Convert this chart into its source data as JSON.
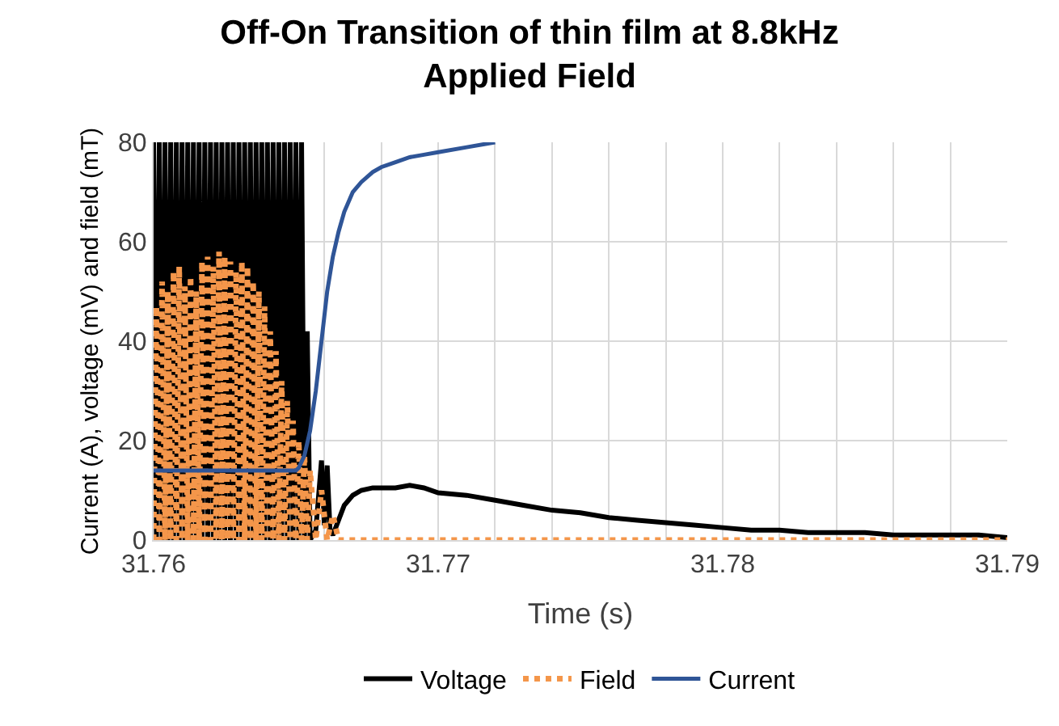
{
  "chart_data": {
    "type": "line",
    "title": "Off-On Transition of thin film at 8.8kHz\nApplied Field",
    "xlabel": "Time (s)",
    "ylabel": "Current (A), voltage (mV) and field (mT)",
    "xlim": [
      31.76,
      31.79
    ],
    "ylim": [
      0,
      80
    ],
    "xticks": [
      31.76,
      {
        "value": 31.762,
        "label": null
      },
      {
        "value": 31.764,
        "label": null
      },
      {
        "value": 31.766,
        "label": null
      },
      {
        "value": 31.768,
        "label": null
      },
      31.77,
      {
        "value": 31.772,
        "label": null
      },
      {
        "value": 31.774,
        "label": null
      },
      {
        "value": 31.776,
        "label": null
      },
      {
        "value": 31.778,
        "label": null
      },
      31.78,
      {
        "value": 31.782,
        "label": null
      },
      {
        "value": 31.784,
        "label": null
      },
      {
        "value": 31.786,
        "label": null
      },
      {
        "value": 31.788,
        "label": null
      },
      31.79
    ],
    "yticks": [
      0,
      20,
      40,
      60,
      80
    ],
    "grid": true,
    "legend": "bottom",
    "series": [
      {
        "name": "Voltage",
        "color": "#000000",
        "line_style": "solid",
        "x": [
          31.76,
          31.7601,
          31.7602,
          31.7603,
          31.7604,
          31.7605,
          31.7606,
          31.7607,
          31.7608,
          31.7609,
          31.761,
          31.7611,
          31.7612,
          31.7613,
          31.7614,
          31.7615,
          31.7616,
          31.7617,
          31.7618,
          31.7619,
          31.762,
          31.7621,
          31.7622,
          31.7623,
          31.7624,
          31.7625,
          31.7626,
          31.7627,
          31.7628,
          31.7629,
          31.763,
          31.7631,
          31.7632,
          31.7633,
          31.7634,
          31.7635,
          31.7636,
          31.7637,
          31.7638,
          31.7639,
          31.764,
          31.7641,
          31.7642,
          31.7643,
          31.7644,
          31.7645,
          31.7646,
          31.7647,
          31.7648,
          31.7649,
          31.765,
          31.7651,
          31.7652,
          31.7653,
          31.7654,
          31.7655,
          31.7657,
          31.7659,
          31.766,
          31.7661,
          31.7662,
          31.7663,
          31.7665,
          31.7667,
          31.767,
          31.7673,
          31.7677,
          31.768,
          31.7685,
          31.769,
          31.7695,
          31.77,
          31.771,
          31.772,
          31.773,
          31.774,
          31.775,
          31.776,
          31.777,
          31.778,
          31.779,
          31.78,
          31.781,
          31.782,
          31.783,
          31.784,
          31.785,
          31.786,
          31.787,
          31.788,
          31.789,
          31.79
        ],
        "values": [
          80,
          0,
          80,
          0,
          80,
          0,
          80,
          0,
          80,
          0,
          80,
          0,
          80,
          0,
          80,
          0,
          80,
          0,
          80,
          0,
          80,
          0,
          80,
          0,
          80,
          0,
          80,
          0,
          80,
          0,
          80,
          0,
          80,
          0,
          80,
          0,
          80,
          0,
          80,
          0,
          80,
          0,
          80,
          0,
          80,
          0,
          80,
          0,
          80,
          0,
          80,
          0,
          80,
          0,
          42,
          0,
          2,
          16,
          3,
          15,
          2,
          1,
          4,
          7,
          9,
          10,
          10.5,
          10.5,
          10.5,
          11,
          10.5,
          9.5,
          9,
          8,
          7,
          6,
          5.5,
          4.5,
          4,
          3.5,
          3,
          2.5,
          2,
          2,
          1.5,
          1.5,
          1.5,
          1,
          1,
          1,
          1,
          0.5
        ]
      },
      {
        "name": "Field",
        "color": "#f4964a",
        "line_style": "dotted",
        "x": [
          31.76,
          31.7601,
          31.7602,
          31.7603,
          31.7604,
          31.7605,
          31.7606,
          31.7607,
          31.7608,
          31.7609,
          31.761,
          31.7611,
          31.7612,
          31.7613,
          31.7614,
          31.7615,
          31.7616,
          31.7617,
          31.7618,
          31.7619,
          31.762,
          31.7621,
          31.7622,
          31.7623,
          31.7624,
          31.7625,
          31.7626,
          31.7627,
          31.7628,
          31.7629,
          31.763,
          31.7631,
          31.7632,
          31.7633,
          31.7634,
          31.7635,
          31.7636,
          31.7637,
          31.7638,
          31.7639,
          31.764,
          31.7641,
          31.7642,
          31.7643,
          31.7644,
          31.7645,
          31.7646,
          31.7647,
          31.7648,
          31.7649,
          31.765,
          31.7651,
          31.7652,
          31.7653,
          31.7654,
          31.7655,
          31.7657,
          31.7659,
          31.7661,
          31.7663,
          31.7665,
          31.767,
          31.775,
          31.79
        ],
        "values": [
          0,
          47,
          0,
          52,
          0,
          50,
          0,
          54,
          0,
          55,
          0,
          51,
          0,
          53,
          0,
          50,
          0,
          56,
          0,
          57,
          0,
          55,
          0,
          58,
          0,
          57,
          0,
          56,
          0,
          54,
          0,
          56,
          0,
          55,
          0,
          52,
          0,
          50,
          0,
          47,
          0,
          42,
          0,
          38,
          0,
          32,
          0,
          28,
          0,
          24,
          0,
          20,
          0,
          17,
          0,
          14,
          0,
          10,
          0,
          5,
          0,
          0,
          0,
          0
        ]
      },
      {
        "name": "Current",
        "color": "#2f5597",
        "line_style": "solid",
        "x": [
          31.76,
          31.762,
          31.764,
          31.765,
          31.7651,
          31.7653,
          31.7655,
          31.7657,
          31.7659,
          31.7661,
          31.7663,
          31.7665,
          31.7667,
          31.767,
          31.7673,
          31.7677,
          31.768,
          31.7685,
          31.769,
          31.7695,
          31.77,
          31.771,
          31.772
        ],
        "values": [
          14,
          14,
          14,
          14,
          14.5,
          17,
          22,
          30,
          40,
          50,
          57,
          62,
          66,
          70,
          72,
          74,
          75,
          76,
          77,
          77.5,
          78,
          79,
          80
        ]
      }
    ]
  }
}
